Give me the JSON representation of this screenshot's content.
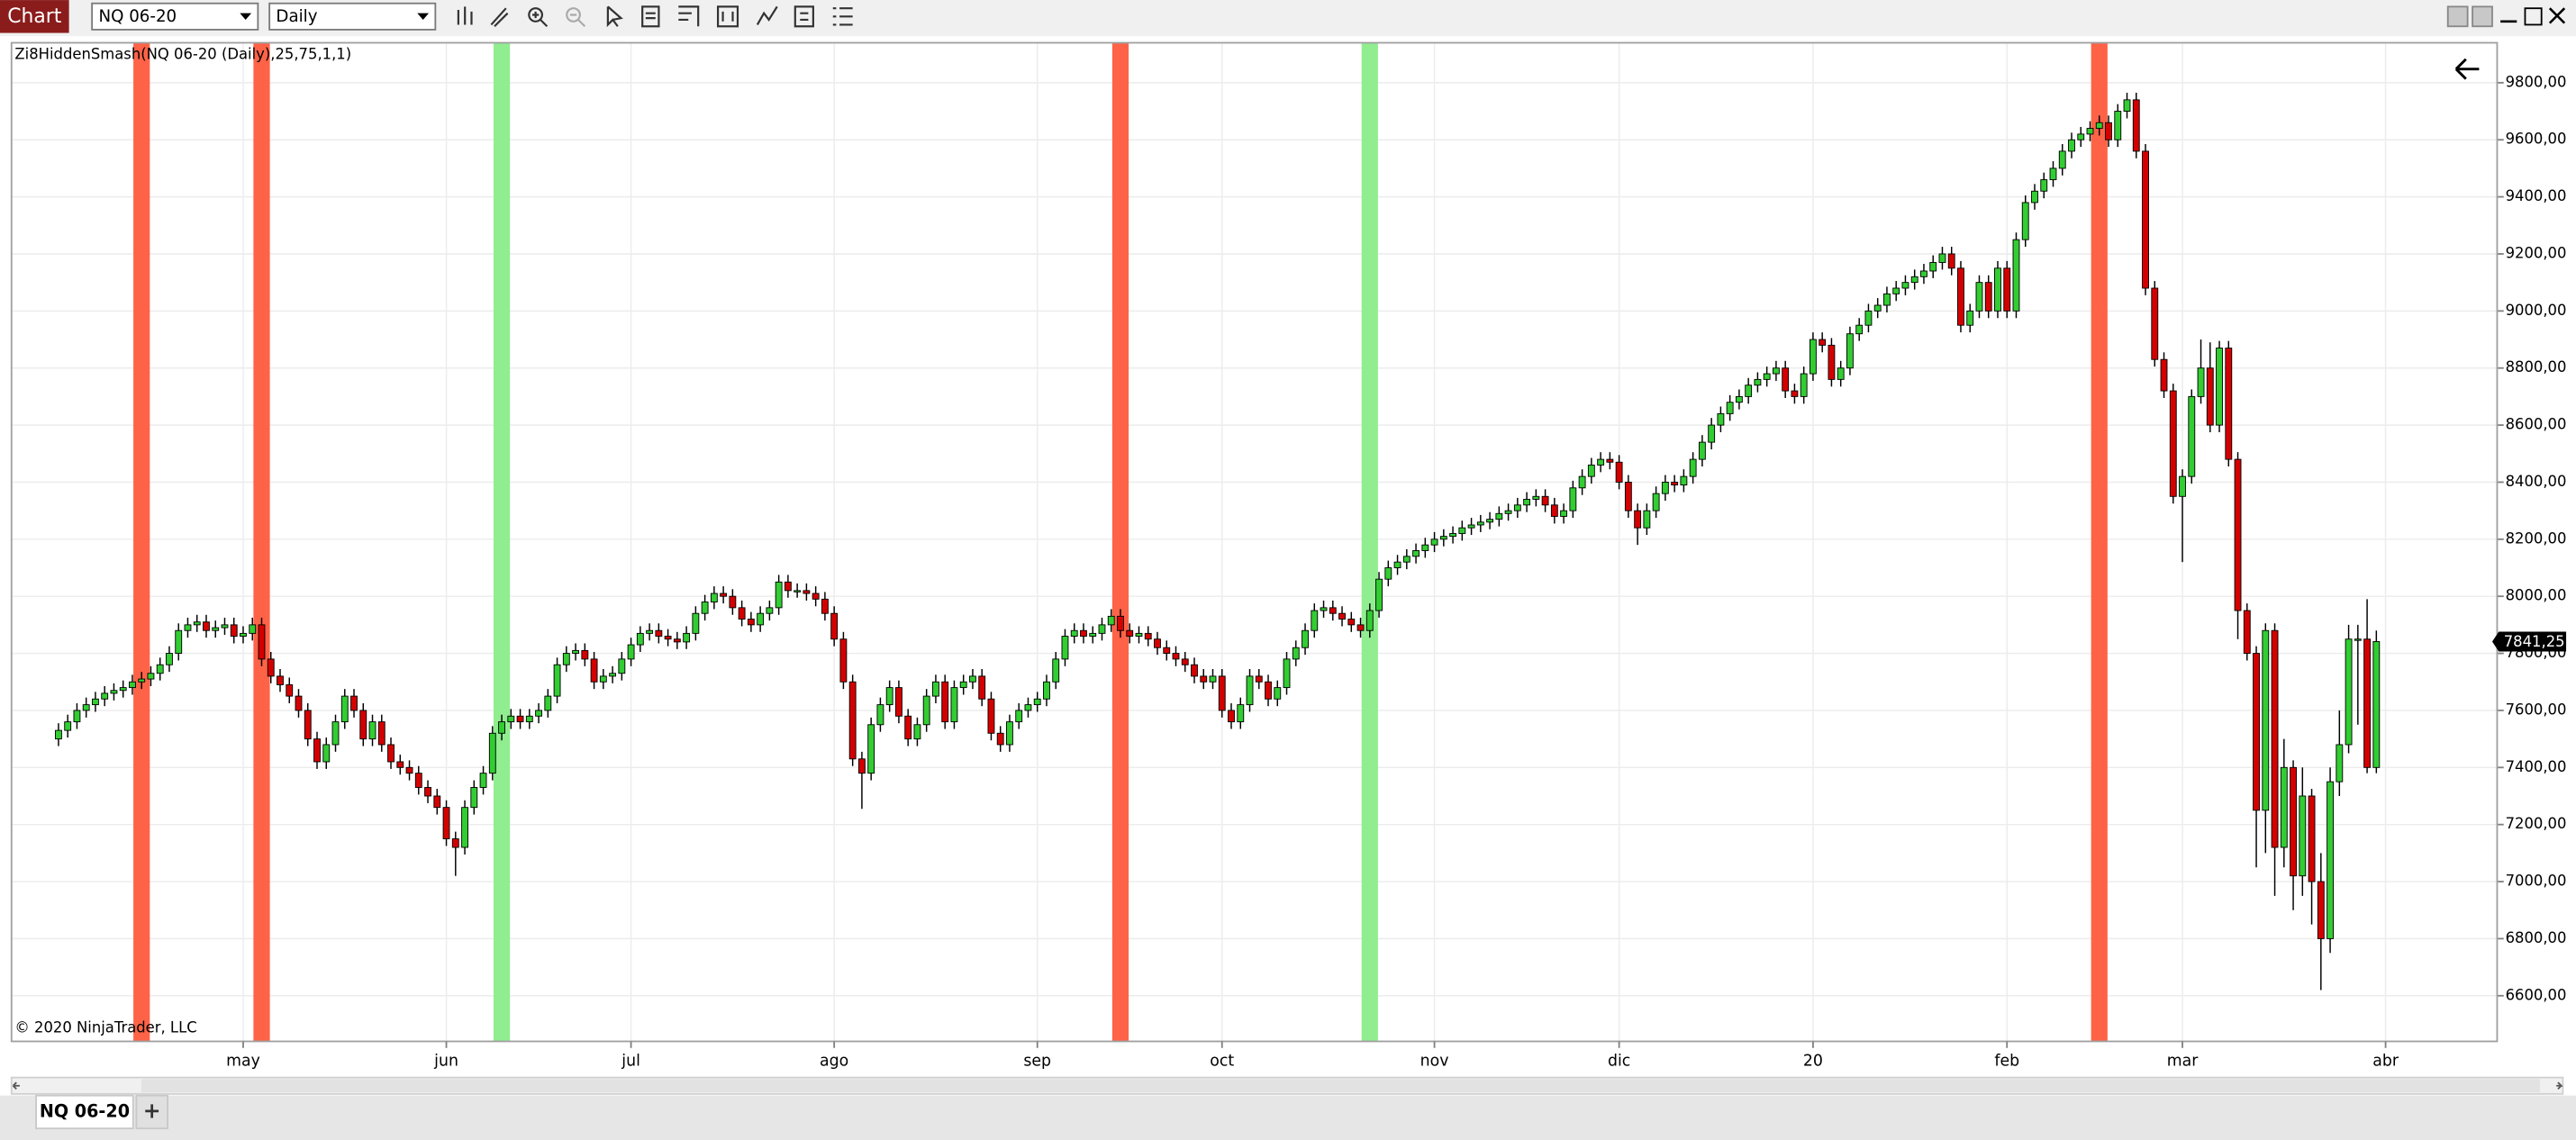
{
  "toolbar": {
    "title": "Chart",
    "instrument": "NQ 06-20",
    "interval": "Daily"
  },
  "tabs": [
    "NQ 06-20"
  ],
  "add_tab": "+",
  "chart_data": {
    "type": "candlestick",
    "indicator_label": "Zi8HiddenSmash(NQ 06-20 (Daily),25,75,1,1)",
    "copyright": "© 2020 NinjaTrader, LLC",
    "up_color": "#32cd32",
    "down_color": "#d40000",
    "wick_color": "#000000",
    "short_color": "#ff6347",
    "long_color": "#90ee90",
    "grid": true,
    "ylim": [
      6440,
      9940
    ],
    "yticks": [
      {
        "value": 6600,
        "label": "6600,00"
      },
      {
        "value": 6800,
        "label": "6800,00"
      },
      {
        "value": 7000,
        "label": "7000,00"
      },
      {
        "value": 7200,
        "label": "7200,00"
      },
      {
        "value": 7400,
        "label": "7400,00"
      },
      {
        "value": 7600,
        "label": "7600,00"
      },
      {
        "value": 7800,
        "label": "7800,00"
      },
      {
        "value": 8000,
        "label": "8000,00"
      },
      {
        "value": 8200,
        "label": "8200,00"
      },
      {
        "value": 8400,
        "label": "8400,00"
      },
      {
        "value": 8600,
        "label": "8600,00"
      },
      {
        "value": 8800,
        "label": "8800,00"
      },
      {
        "value": 9000,
        "label": "9000,00"
      },
      {
        "value": 9200,
        "label": "9200,00"
      },
      {
        "value": 9400,
        "label": "9400,00"
      },
      {
        "value": 9600,
        "label": "9600,00"
      },
      {
        "value": 9800,
        "label": "9800,00"
      }
    ],
    "last_label": {
      "value": 7841.25,
      "label": "7841,25"
    },
    "short_signals": [
      9,
      22,
      115,
      221
    ],
    "long_signals": [
      48,
      142
    ],
    "categories": [
      null,
      null,
      null,
      null,
      null,
      null,
      null,
      null,
      null,
      null,
      null,
      null,
      null,
      null,
      null,
      null,
      null,
      null,
      null,
      null,
      "may",
      null,
      null,
      null,
      null,
      null,
      null,
      null,
      null,
      null,
      null,
      null,
      null,
      null,
      null,
      null,
      null,
      null,
      null,
      null,
      null,
      null,
      "jun",
      null,
      null,
      null,
      null,
      null,
      null,
      null,
      null,
      null,
      null,
      null,
      null,
      null,
      null,
      null,
      null,
      null,
      null,
      null,
      "jul",
      null,
      null,
      null,
      null,
      null,
      null,
      null,
      null,
      null,
      null,
      null,
      null,
      null,
      null,
      null,
      null,
      null,
      null,
      null,
      null,
      null,
      "ago",
      null,
      null,
      null,
      null,
      null,
      null,
      null,
      null,
      null,
      null,
      null,
      null,
      null,
      null,
      null,
      null,
      null,
      null,
      null,
      null,
      null,
      "sep",
      null,
      null,
      null,
      null,
      null,
      null,
      null,
      null,
      null,
      null,
      null,
      null,
      null,
      null,
      null,
      null,
      null,
      null,
      null,
      "oct",
      null,
      null,
      null,
      null,
      null,
      null,
      null,
      null,
      null,
      null,
      null,
      null,
      null,
      null,
      null,
      null,
      null,
      null,
      null,
      null,
      null,
      null,
      "nov",
      null,
      null,
      null,
      null,
      null,
      null,
      null,
      null,
      null,
      null,
      null,
      null,
      null,
      null,
      null,
      null,
      null,
      null,
      null,
      "dic",
      null,
      null,
      null,
      null,
      null,
      null,
      null,
      null,
      null,
      null,
      null,
      null,
      null,
      null,
      null,
      null,
      null,
      null,
      null,
      null,
      "20",
      null,
      null,
      null,
      null,
      null,
      null,
      null,
      null,
      null,
      null,
      null,
      null,
      null,
      null,
      null,
      null,
      null,
      null,
      null,
      null,
      "feb",
      null,
      null,
      null,
      null,
      null,
      null,
      null,
      null,
      null,
      null,
      null,
      null,
      null,
      null,
      null,
      null,
      null,
      null,
      "mar",
      null,
      null,
      null,
      null,
      null,
      null,
      null,
      null,
      null,
      null,
      null,
      null,
      null,
      null,
      null,
      null,
      null,
      null,
      null,
      null,
      null,
      "abr"
    ],
    "open": [
      7500,
      7530,
      7560,
      7600,
      7620,
      7640,
      7660,
      7670,
      7680,
      7700,
      7710,
      7730,
      7760,
      7800,
      7880,
      7900,
      7910,
      7880,
      7890,
      7900,
      7860,
      7870,
      7900,
      7780,
      7720,
      7690,
      7650,
      7600,
      7500,
      7420,
      7480,
      7560,
      7650,
      7600,
      7500,
      7560,
      7480,
      7420,
      7400,
      7380,
      7330,
      7300,
      7260,
      7150,
      7120,
      7260,
      7330,
      7380,
      7520,
      7560,
      7580,
      7560,
      7580,
      7600,
      7650,
      7760,
      7800,
      7810,
      7780,
      7700,
      7720,
      7730,
      7780,
      7830,
      7870,
      7880,
      7860,
      7850,
      7840,
      7870,
      7940,
      7980,
      8010,
      8000,
      7960,
      7920,
      7900,
      7940,
      7960,
      8050,
      8020,
      8020,
      8010,
      7990,
      7940,
      7850,
      7700,
      7430,
      7380,
      7550,
      7620,
      7680,
      7580,
      7500,
      7550,
      7650,
      7700,
      7560,
      7680,
      7700,
      7720,
      7640,
      7520,
      7480,
      7560,
      7600,
      7620,
      7640,
      7700,
      7780,
      7860,
      7880,
      7860,
      7870,
      7900,
      7930,
      7880,
      7860,
      7870,
      7850,
      7820,
      7800,
      7780,
      7760,
      7720,
      7700,
      7720,
      7600,
      7560,
      7620,
      7720,
      7700,
      7640,
      7680,
      7780,
      7820,
      7880,
      7950,
      7960,
      7940,
      7920,
      7900,
      7880,
      7950,
      8060,
      8100,
      8120,
      8140,
      8160,
      8180,
      8200,
      8210,
      8220,
      8240,
      8250,
      8260,
      8270,
      8290,
      8300,
      8320,
      8340,
      8350,
      8320,
      8280,
      8300,
      8380,
      8420,
      8460,
      8480,
      8470,
      8400,
      8300,
      8240,
      8300,
      8360,
      8400,
      8390,
      8420,
      8480,
      8540,
      8600,
      8640,
      8680,
      8700,
      8740,
      8760,
      8780,
      8800,
      8720,
      8700,
      8780,
      8900,
      8880,
      8760,
      8800,
      8920,
      8950,
      9000,
      9020,
      9060,
      9080,
      9100,
      9120,
      9140,
      9170,
      9200,
      9150,
      8950,
      9000,
      9100,
      9000,
      9150,
      9000,
      9250,
      9380,
      9420,
      9460,
      9500,
      9560,
      9600,
      9620,
      9640,
      9660,
      9600,
      9700,
      9740,
      9560,
      9080,
      8830,
      8720,
      8350,
      8420,
      8700,
      8800,
      8600,
      8870,
      8480,
      7950,
      7800,
      7250,
      7880,
      7120,
      7400,
      7020,
      7300,
      7000,
      6800,
      7350,
      7480,
      7850,
      7850,
      7400,
      null
    ],
    "high": [
      7555,
      7585,
      7625,
      7645,
      7665,
      7685,
      7695,
      7705,
      7725,
      7735,
      7755,
      7785,
      7825,
      7905,
      7925,
      7935,
      7935,
      7915,
      7925,
      7925,
      7895,
      7925,
      7925,
      7805,
      7745,
      7715,
      7675,
      7625,
      7525,
      7505,
      7585,
      7675,
      7675,
      7625,
      7585,
      7585,
      7505,
      7445,
      7425,
      7405,
      7355,
      7325,
      7285,
      7175,
      7285,
      7355,
      7405,
      7545,
      7585,
      7605,
      7605,
      7605,
      7625,
      7675,
      7785,
      7825,
      7835,
      7835,
      7805,
      7745,
      7755,
      7805,
      7855,
      7895,
      7905,
      7905,
      7885,
      7875,
      7895,
      7965,
      8005,
      8035,
      8035,
      8025,
      7985,
      7945,
      7965,
      7985,
      8075,
      8075,
      8045,
      8045,
      8035,
      8015,
      7965,
      7875,
      7725,
      7455,
      7575,
      7645,
      7705,
      7705,
      7605,
      7575,
      7675,
      7725,
      7725,
      7705,
      7725,
      7745,
      7745,
      7665,
      7545,
      7585,
      7625,
      7645,
      7665,
      7725,
      7805,
      7885,
      7905,
      7905,
      7895,
      7925,
      7955,
      7955,
      7905,
      7895,
      7895,
      7875,
      7845,
      7825,
      7805,
      7785,
      7745,
      7745,
      7745,
      7625,
      7645,
      7745,
      7745,
      7725,
      7705,
      7805,
      7845,
      7905,
      7975,
      7985,
      7985,
      7965,
      7945,
      7925,
      7975,
      8085,
      8125,
      8145,
      8165,
      8185,
      8205,
      8225,
      8235,
      8245,
      8265,
      8275,
      8285,
      8295,
      8315,
      8325,
      8345,
      8365,
      8375,
      8375,
      8345,
      8325,
      8405,
      8445,
      8485,
      8505,
      8505,
      8495,
      8425,
      8325,
      8325,
      8385,
      8425,
      8425,
      8445,
      8505,
      8565,
      8625,
      8665,
      8705,
      8725,
      8765,
      8785,
      8805,
      8825,
      8825,
      8745,
      8805,
      8925,
      8925,
      8905,
      8825,
      8945,
      8975,
      9025,
      9045,
      9085,
      9105,
      9125,
      9145,
      9165,
      9195,
      9225,
      9225,
      9175,
      9025,
      9125,
      9125,
      9175,
      9175,
      9275,
      9405,
      9445,
      9485,
      9525,
      9585,
      9625,
      9645,
      9665,
      9685,
      9685,
      9725,
      9765,
      9765,
      9585,
      9105,
      8855,
      8745,
      8445,
      8725,
      8900,
      8890,
      8895,
      8895,
      8505,
      7975,
      7825,
      7905,
      7905,
      7500,
      7425,
      7400,
      7325,
      7100,
      7400,
      7600,
      7900,
      7900,
      7990,
      7880,
      null
    ],
    "low": [
      7475,
      7505,
      7535,
      7575,
      7595,
      7615,
      7635,
      7645,
      7655,
      7675,
      7685,
      7705,
      7735,
      7775,
      7855,
      7875,
      7855,
      7855,
      7865,
      7835,
      7835,
      7845,
      7755,
      7695,
      7665,
      7625,
      7575,
      7475,
      7395,
      7395,
      7455,
      7535,
      7575,
      7475,
      7475,
      7455,
      7395,
      7375,
      7355,
      7305,
      7275,
      7235,
      7125,
      7020,
      7095,
      7235,
      7305,
      7355,
      7495,
      7535,
      7535,
      7535,
      7555,
      7575,
      7625,
      7735,
      7775,
      7755,
      7675,
      7675,
      7695,
      7705,
      7755,
      7805,
      7845,
      7835,
      7825,
      7815,
      7815,
      7845,
      7915,
      7955,
      7975,
      7935,
      7895,
      7875,
      7875,
      7915,
      7935,
      7995,
      7995,
      7985,
      7965,
      7915,
      7825,
      7675,
      7405,
      7255,
      7355,
      7525,
      7595,
      7555,
      7475,
      7475,
      7525,
      7625,
      7535,
      7535,
      7655,
      7675,
      7615,
      7495,
      7455,
      7455,
      7535,
      7575,
      7595,
      7615,
      7675,
      7755,
      7835,
      7835,
      7835,
      7845,
      7875,
      7855,
      7835,
      7835,
      7825,
      7795,
      7775,
      7755,
      7735,
      7695,
      7675,
      7675,
      7575,
      7535,
      7535,
      7595,
      7675,
      7615,
      7615,
      7655,
      7755,
      7795,
      7855,
      7925,
      7915,
      7895,
      7875,
      7855,
      7855,
      7925,
      8035,
      8075,
      8095,
      8115,
      8135,
      8155,
      8175,
      8185,
      8195,
      8215,
      8225,
      8235,
      8245,
      8265,
      8275,
      8295,
      8315,
      8295,
      8255,
      8255,
      8275,
      8355,
      8395,
      8435,
      8445,
      8375,
      8275,
      8180,
      8215,
      8275,
      8335,
      8365,
      8365,
      8395,
      8455,
      8515,
      8575,
      8615,
      8655,
      8675,
      8715,
      8735,
      8755,
      8695,
      8675,
      8675,
      8755,
      8855,
      8735,
      8735,
      8775,
      8895,
      8925,
      8975,
      8995,
      9035,
      9055,
      9075,
      9095,
      9115,
      9145,
      9125,
      8925,
      8925,
      8975,
      8975,
      8975,
      8975,
      8975,
      9225,
      9355,
      9395,
      9435,
      9475,
      9535,
      9575,
      9595,
      9615,
      9575,
      9575,
      9675,
      9535,
      9055,
      8805,
      8695,
      8325,
      8120,
      8395,
      8675,
      8575,
      8575,
      8455,
      7850,
      7775,
      7050,
      7100,
      6950,
      7050,
      6900,
      6950,
      6850,
      6620,
      6750,
      7300,
      7450,
      7550,
      7380,
      7380,
      null
    ],
    "close": [
      7530,
      7560,
      7600,
      7620,
      7640,
      7660,
      7670,
      7680,
      7700,
      7710,
      7730,
      7760,
      7800,
      7880,
      7900,
      7910,
      7880,
      7890,
      7900,
      7860,
      7870,
      7900,
      7780,
      7720,
      7690,
      7650,
      7600,
      7500,
      7420,
      7480,
      7560,
      7650,
      7600,
      7500,
      7560,
      7480,
      7420,
      7400,
      7380,
      7330,
      7300,
      7260,
      7150,
      7120,
      7260,
      7330,
      7380,
      7520,
      7560,
      7580,
      7560,
      7580,
      7600,
      7650,
      7760,
      7800,
      7810,
      7780,
      7700,
      7720,
      7730,
      7780,
      7830,
      7870,
      7880,
      7860,
      7850,
      7840,
      7870,
      7940,
      7980,
      8010,
      8000,
      7960,
      7920,
      7900,
      7940,
      7960,
      8050,
      8020,
      8020,
      8010,
      7990,
      7940,
      7850,
      7700,
      7430,
      7380,
      7550,
      7620,
      7680,
      7580,
      7500,
      7550,
      7650,
      7700,
      7560,
      7680,
      7700,
      7720,
      7640,
      7520,
      7480,
      7560,
      7600,
      7620,
      7640,
      7700,
      7780,
      7860,
      7880,
      7860,
      7870,
      7900,
      7930,
      7880,
      7860,
      7870,
      7850,
      7820,
      7800,
      7780,
      7760,
      7720,
      7700,
      7720,
      7600,
      7560,
      7620,
      7720,
      7700,
      7640,
      7680,
      7780,
      7820,
      7880,
      7950,
      7960,
      7940,
      7920,
      7900,
      7880,
      7950,
      8060,
      8100,
      8120,
      8140,
      8160,
      8180,
      8200,
      8210,
      8220,
      8240,
      8250,
      8260,
      8270,
      8290,
      8300,
      8320,
      8340,
      8350,
      8320,
      8280,
      8300,
      8380,
      8420,
      8460,
      8480,
      8470,
      8400,
      8300,
      8240,
      8300,
      8360,
      8400,
      8390,
      8420,
      8480,
      8540,
      8600,
      8640,
      8680,
      8700,
      8740,
      8760,
      8780,
      8800,
      8720,
      8700,
      8780,
      8900,
      8880,
      8760,
      8800,
      8920,
      8950,
      9000,
      9020,
      9060,
      9080,
      9100,
      9120,
      9140,
      9170,
      9200,
      9150,
      8950,
      9000,
      9100,
      9000,
      9150,
      9000,
      9250,
      9380,
      9420,
      9460,
      9500,
      9560,
      9600,
      9620,
      9640,
      9660,
      9600,
      9700,
      9740,
      9560,
      9080,
      8830,
      8720,
      8350,
      8420,
      8700,
      8800,
      8600,
      8870,
      8480,
      7950,
      7800,
      7250,
      7880,
      7120,
      7400,
      7020,
      7300,
      7000,
      6800,
      7350,
      7480,
      7850,
      7850,
      7400,
      7841.25,
      null
    ]
  }
}
